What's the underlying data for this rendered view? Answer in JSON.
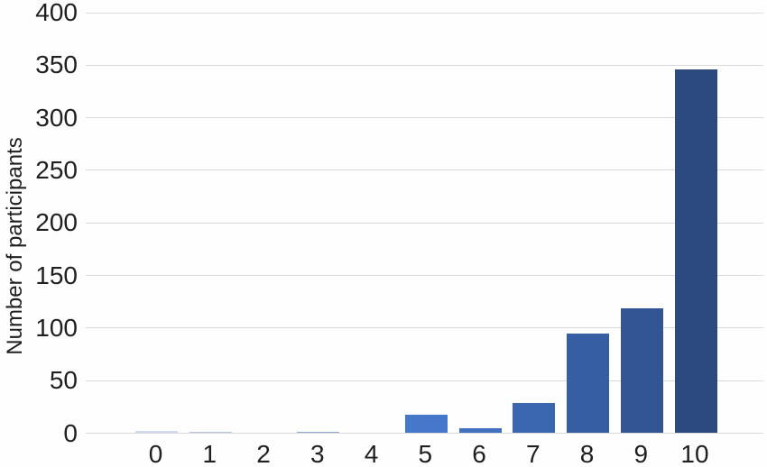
{
  "chart_data": {
    "type": "bar",
    "title": "",
    "xlabel": "",
    "ylabel": "Number of participants",
    "categories": [
      "0",
      "1",
      "2",
      "3",
      "4",
      "5",
      "6",
      "7",
      "8",
      "9",
      "10"
    ],
    "values": [
      2,
      1,
      0,
      1,
      0,
      18,
      5,
      29,
      95,
      119,
      346
    ],
    "bar_colors": [
      "#cfd8ee",
      "#b7c5e7",
      "#a9badf",
      "#94a9d8",
      "#6f8fcd",
      "#4678c9",
      "#4070bf",
      "#3b67b1",
      "#365fa3",
      "#325593",
      "#2c4a7d"
    ],
    "ylim": [
      0,
      400
    ],
    "yticks": [
      0,
      50,
      100,
      150,
      200,
      250,
      300,
      350,
      400
    ],
    "grid": "horizontal",
    "gridline_color": "#d9d9d9",
    "legend": "none",
    "background": "#fefefe",
    "text_color": "#1f1f1f"
  }
}
